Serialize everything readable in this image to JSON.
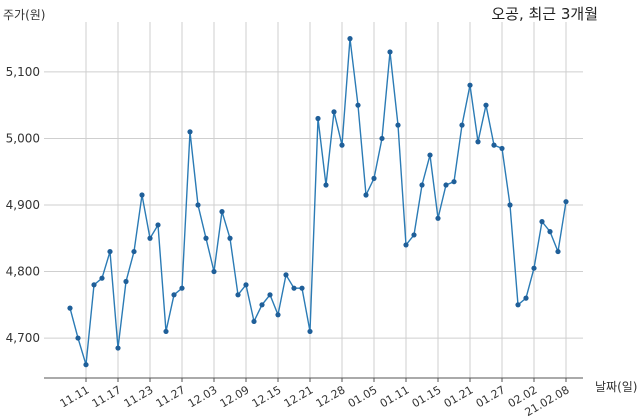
{
  "chart_data": {
    "type": "line",
    "title": "오공, 최근 3개월",
    "xlabel": "날짜(일)",
    "ylabel": "주가(원)",
    "ylim": [
      4640,
      5175
    ],
    "yticks": [
      4700,
      4800,
      4900,
      5000,
      5100
    ],
    "ytick_labels": [
      "4,700",
      "4,800",
      "4,900",
      "5,000",
      "5,100"
    ],
    "xtick_labels": [
      "11.11",
      "11.17",
      "11.23",
      "11.27",
      "12.03",
      "12.09",
      "12.15",
      "12.21",
      "12.28",
      "01.05",
      "01.11",
      "01.15",
      "01.21",
      "01.27",
      "02.02",
      "21.02.08"
    ],
    "grid": true,
    "color": "#2b7bb5",
    "values": [
      4745,
      4700,
      4660,
      4780,
      4790,
      4830,
      4685,
      4785,
      4830,
      4915,
      4850,
      4870,
      4710,
      4765,
      4775,
      5010,
      4900,
      4850,
      4800,
      4890,
      4850,
      4765,
      4780,
      4725,
      4750,
      4765,
      4735,
      4795,
      4775,
      4775,
      4710,
      5030,
      4930,
      5040,
      4990,
      5150,
      5050,
      4915,
      4940,
      5000,
      5130,
      5020,
      4840,
      4855,
      4930,
      4975,
      4880,
      4930,
      4935,
      5020,
      5080,
      4995,
      5050,
      4990,
      4985,
      4900,
      4750,
      4760,
      4805,
      4875,
      4860,
      4830,
      4905
    ]
  }
}
